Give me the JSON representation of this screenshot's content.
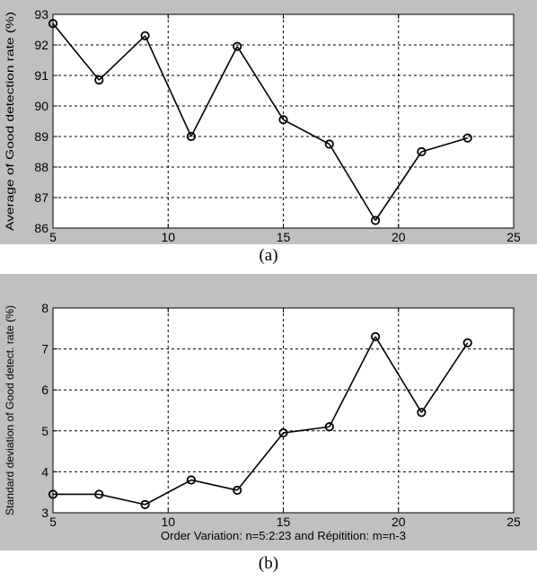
{
  "chart_data": [
    {
      "type": "line",
      "caption": "(a)",
      "xlabel": "Order Variation: n=5:2:23 and Répitition: m=n-3",
      "ylabel": "Average of Good detection rate (%)",
      "xlim": [
        5,
        25
      ],
      "ylim": [
        86,
        93
      ],
      "xticks": [
        5,
        10,
        15,
        20,
        25
      ],
      "yticks": [
        86,
        87,
        88,
        89,
        90,
        91,
        92,
        93
      ],
      "grid": true,
      "x": [
        5,
        7,
        9,
        11,
        13,
        15,
        17,
        19,
        21,
        23
      ],
      "y": [
        92.7,
        90.85,
        92.3,
        89.0,
        91.95,
        89.55,
        88.75,
        86.25,
        88.5,
        88.95
      ],
      "line_color": "#000000",
      "marker": "circle"
    },
    {
      "type": "line",
      "caption": "(b)",
      "xlabel": "Order Variation: n=5:2:23 and Répitition: m=n-3",
      "ylabel": "Standard deviation of Good detect. rate (%)",
      "xlim": [
        5,
        25
      ],
      "ylim": [
        3,
        8
      ],
      "xticks": [
        5,
        10,
        15,
        20,
        25
      ],
      "yticks": [
        3,
        4,
        5,
        6,
        7,
        8
      ],
      "grid": true,
      "x": [
        5,
        7,
        9,
        11,
        13,
        15,
        17,
        19,
        21,
        23
      ],
      "y": [
        3.45,
        3.45,
        3.2,
        3.8,
        3.55,
        4.95,
        5.1,
        7.3,
        5.45,
        7.15
      ],
      "line_color": "#000000",
      "marker": "circle"
    }
  ],
  "panel_bg": "#c0c0c0",
  "axes_bg": "#ffffff"
}
